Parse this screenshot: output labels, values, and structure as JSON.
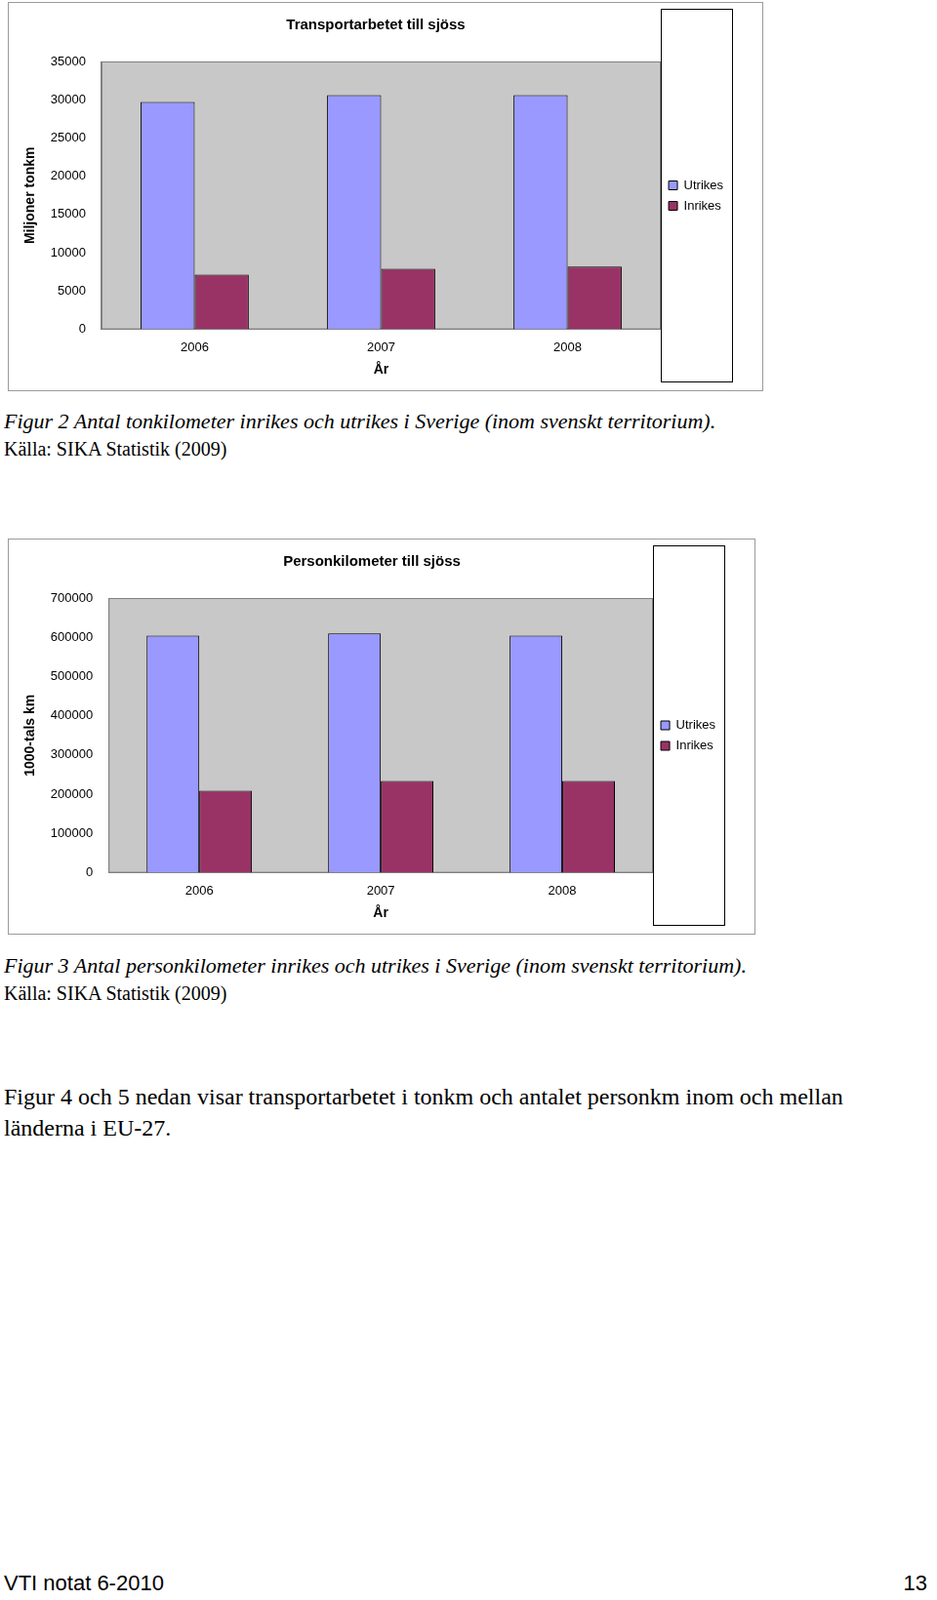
{
  "chart_data": [
    {
      "type": "bar",
      "title": "Transportarbetet till sjöss",
      "x_label": "År",
      "y_label": "Miljoner tonkm",
      "categories": [
        "2006",
        "2007",
        "2008"
      ],
      "series": [
        {
          "name": "Utrikes",
          "color": "#9999ff",
          "values": [
            29700,
            30600,
            30600
          ]
        },
        {
          "name": "Inrikes",
          "color": "#993366",
          "values": [
            7150,
            7900,
            8200
          ]
        }
      ],
      "ylim": [
        0,
        35000
      ],
      "yticks": [
        0,
        5000,
        10000,
        15000,
        20000,
        25000,
        30000,
        35000
      ],
      "grid": false,
      "legend": "right"
    },
    {
      "type": "bar",
      "title": "Personkilometer till sjöss",
      "x_label": "År",
      "y_label": "1000-tals km",
      "categories": [
        "2006",
        "2007",
        "2008"
      ],
      "series": [
        {
          "name": "Utrikes",
          "color": "#9999ff",
          "values": [
            604000,
            610000,
            604000
          ]
        },
        {
          "name": "Inrikes",
          "color": "#993366",
          "values": [
            209000,
            234000,
            234000
          ]
        }
      ],
      "ylim": [
        0,
        700000
      ],
      "yticks": [
        0,
        100000,
        200000,
        300000,
        400000,
        500000,
        600000,
        700000
      ],
      "grid": false,
      "legend": "right"
    }
  ],
  "captions": [
    {
      "figure": "Figur 2  Antal tonkilometer inrikes och utrikes i Sverige (inom svenskt territorium).",
      "source": "Källa: SIKA Statistik (2009)"
    },
    {
      "figure": "Figur 3  Antal personkilometer inrikes och utrikes i Sverige (inom svenskt territorium).",
      "source": "Källa: SIKA Statistik (2009)"
    }
  ],
  "body": "Figur 4 och 5 nedan visar transportarbetet i tonkm och antalet personkm inom och mellan länderna i EU-27.",
  "footer": {
    "left": "VTI notat 6-2010",
    "right": "13"
  }
}
